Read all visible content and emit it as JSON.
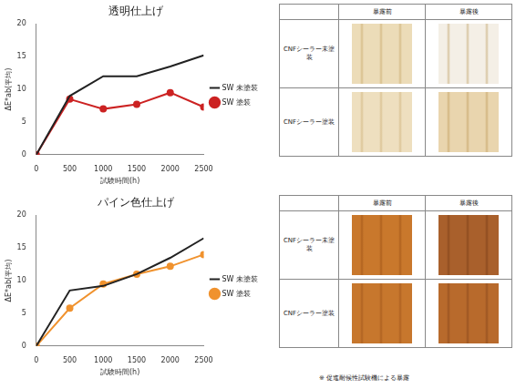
{
  "chart_data": [
    {
      "type": "line",
      "title": "透明仕上げ",
      "x_label": "試験時間(h)",
      "y_label": "ΔE*ab(平均)",
      "x": [
        0,
        500,
        1000,
        1500,
        2000,
        2500
      ],
      "series": [
        {
          "name": "SW 未塗装",
          "color": "#222222",
          "marker": "none",
          "values": [
            0,
            9,
            12,
            12,
            13.5,
            15.2
          ]
        },
        {
          "name": "SW 塗装",
          "color": "#cc2222",
          "marker": "circle",
          "values": [
            0,
            8.5,
            7,
            7.7,
            9.5,
            7.3
          ]
        }
      ],
      "xlim": [
        0,
        2500
      ],
      "xticks": [
        0,
        500,
        1000,
        1500,
        2000,
        2500
      ],
      "ylim": [
        0,
        20
      ],
      "yticks": [
        0,
        5,
        10,
        15,
        20
      ],
      "grid": false,
      "legend": "right"
    },
    {
      "type": "line",
      "title": "パイン色仕上げ",
      "x_label": "試験時間(h)",
      "y_label": "ΔE*ab(平均)",
      "x": [
        0,
        500,
        1000,
        1500,
        2000,
        2500
      ],
      "series": [
        {
          "name": "SW 未塗装",
          "color": "#222222",
          "marker": "none",
          "values": [
            0,
            8.5,
            9.2,
            11,
            13.5,
            16.5
          ]
        },
        {
          "name": "SW 塗装",
          "color": "#f0922e",
          "marker": "circle",
          "values": [
            0,
            5.8,
            9.5,
            11,
            12.2,
            14
          ]
        }
      ],
      "xlim": [
        0,
        2500
      ],
      "xticks": [
        0,
        500,
        1000,
        1500,
        2000,
        2500
      ],
      "ylim": [
        0,
        20
      ],
      "yticks": [
        0,
        5,
        10,
        15,
        20
      ],
      "grid": false,
      "legend": "right"
    }
  ],
  "tables": [
    {
      "columns": [
        "暴露前",
        "暴露後"
      ],
      "rows": [
        "CNFシーラー未塗装",
        "CNFシーラー塗装"
      ]
    },
    {
      "columns": [
        "暴露前",
        "暴露後"
      ],
      "rows": [
        "CNFシーラー未塗装",
        "CNFシーラー塗装"
      ]
    }
  ],
  "footnote": "※ 促進耐候性試験機による暴露"
}
